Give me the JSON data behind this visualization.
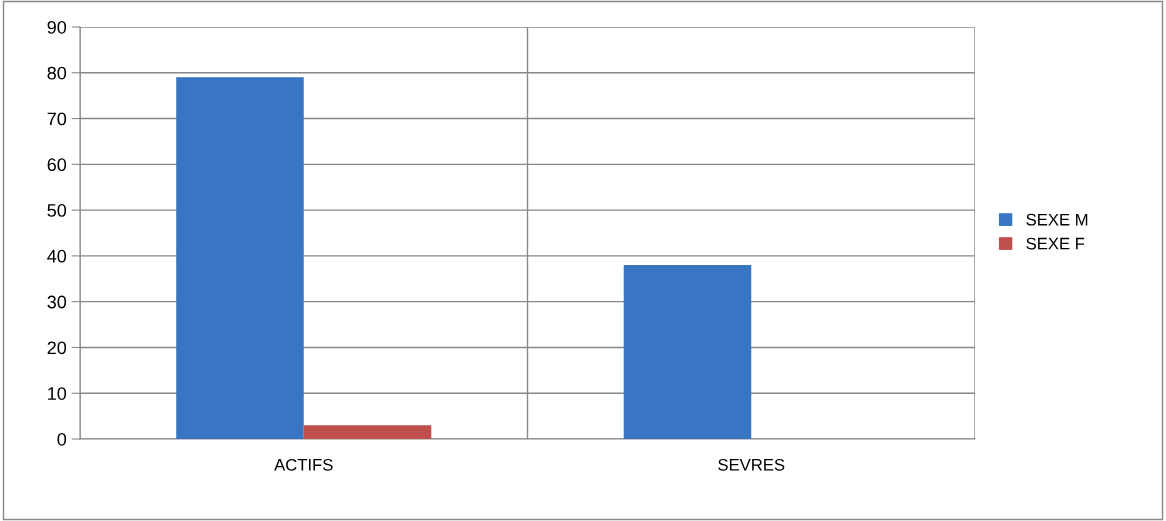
{
  "chart_data": {
    "type": "bar",
    "categories": [
      "ACTIFS",
      "SEVRES"
    ],
    "series": [
      {
        "name": "SEXE M",
        "color": "#3a75c4",
        "values": [
          79,
          38
        ]
      },
      {
        "name": "SEXE F",
        "color": "#c0504d",
        "values": [
          3,
          0
        ]
      }
    ],
    "ylim": [
      0,
      90
    ],
    "yticks": [
      0,
      10,
      20,
      30,
      40,
      50,
      60,
      70,
      80,
      90
    ],
    "grid": true,
    "legend": "right"
  }
}
